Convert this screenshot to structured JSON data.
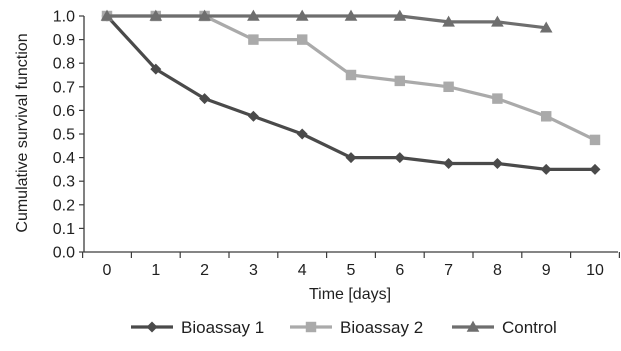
{
  "chart_data": {
    "type": "line",
    "xlabel": "Time [days]",
    "ylabel": "Cumulative survival function",
    "xlim": [
      0,
      10
    ],
    "ylim": [
      0.0,
      1.0
    ],
    "x_ticks": [
      "0",
      "1",
      "2",
      "3",
      "4",
      "5",
      "6",
      "7",
      "8",
      "9",
      "10"
    ],
    "y_ticks": [
      "0.0",
      "0.1",
      "0.2",
      "0.3",
      "0.4",
      "0.5",
      "0.6",
      "0.7",
      "0.8",
      "0.9",
      "1.0"
    ],
    "grid": false,
    "legend_position": "bottom",
    "series": [
      {
        "name": "Bioassay 1",
        "color": "#4a4a4a",
        "marker": "diamond",
        "x": [
          0,
          1,
          2,
          3,
          4,
          5,
          6,
          7,
          8,
          9,
          10
        ],
        "y": [
          1.0,
          0.775,
          0.65,
          0.575,
          0.5,
          0.4,
          0.4,
          0.375,
          0.375,
          0.35,
          0.35
        ]
      },
      {
        "name": "Bioassay 2",
        "color": "#aaaaaa",
        "marker": "square",
        "x": [
          0,
          1,
          2,
          3,
          4,
          5,
          6,
          7,
          8,
          9,
          10
        ],
        "y": [
          1.0,
          1.0,
          1.0,
          0.9,
          0.9,
          0.75,
          0.725,
          0.7,
          0.65,
          0.575,
          0.475
        ]
      },
      {
        "name": "Control",
        "color": "#6e6e6e",
        "marker": "triangle",
        "x": [
          0,
          1,
          2,
          3,
          4,
          5,
          6,
          7,
          8,
          9
        ],
        "y": [
          1.0,
          1.0,
          1.0,
          1.0,
          1.0,
          1.0,
          1.0,
          0.975,
          0.975,
          0.95
        ]
      }
    ]
  }
}
